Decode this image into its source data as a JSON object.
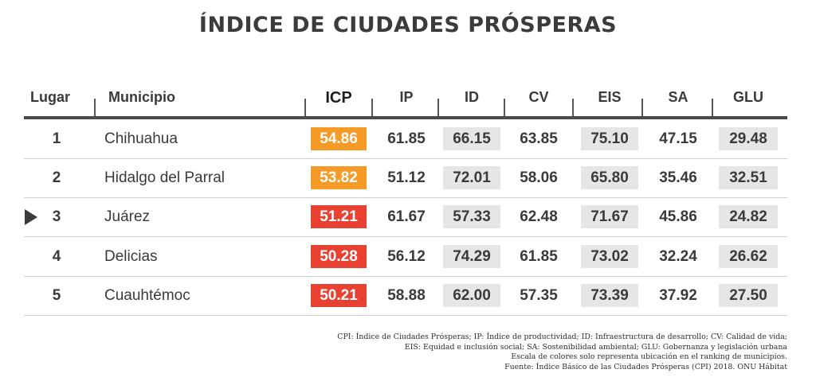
{
  "title": "ÍNDICE DE CIUDADES PRÓSPERAS",
  "colors": {
    "orange": "#f59a25",
    "red": "#e84131",
    "shade": "#e6e6e6",
    "line": "#4a4a4a"
  },
  "icons": {
    "current_row_marker": "play-triangle-icon"
  },
  "chart_data": {
    "type": "table",
    "title": "ÍNDICE DE CIUDADES PRÓSPERAS",
    "columns": [
      "Lugar",
      "Municipio",
      "ICP",
      "IP",
      "ID",
      "CV",
      "EIS",
      "SA",
      "GLU"
    ],
    "rows": [
      {
        "rank": "1",
        "municipio": "Chihuahua",
        "icp": "54.86",
        "icp_color": "orange",
        "marked": false,
        "values": [
          "61.85",
          "66.15",
          "63.85",
          "75.10",
          "47.15",
          "29.48"
        ]
      },
      {
        "rank": "2",
        "municipio": "Hidalgo del Parral",
        "icp": "53.82",
        "icp_color": "orange",
        "marked": false,
        "values": [
          "51.12",
          "72.01",
          "58.06",
          "65.80",
          "35.46",
          "32.51"
        ]
      },
      {
        "rank": "3",
        "municipio": "Juárez",
        "icp": "51.21",
        "icp_color": "red",
        "marked": true,
        "values": [
          "61.67",
          "57.33",
          "62.48",
          "71.67",
          "45.86",
          "24.82"
        ]
      },
      {
        "rank": "4",
        "municipio": "Delicias",
        "icp": "50.28",
        "icp_color": "red",
        "marked": false,
        "values": [
          "56.12",
          "74.29",
          "61.85",
          "73.02",
          "32.24",
          "26.62"
        ]
      },
      {
        "rank": "5",
        "municipio": "Cuauhtémoc",
        "icp": "50.21",
        "icp_color": "red",
        "marked": false,
        "values": [
          "58.88",
          "62.00",
          "57.35",
          "73.39",
          "37.92",
          "27.50"
        ]
      }
    ]
  },
  "footnotes": [
    "CPI: Índice de Ciudades Prósperas; IP: Índice de productividad; ID: Infraestructura de desarrollo; CV: Calidad de vida;",
    "EIS: Equidad e inclusión social; SA: Sostenibilidad ambiental; GLU: Gobernanza y legislación urbana",
    "Escala de colores solo representa ubicación en el ranking de municipios.",
    "Fuente: Índice Básico de las Ciudades Prósperas (CPI) 2018. ONU Hábitat"
  ]
}
